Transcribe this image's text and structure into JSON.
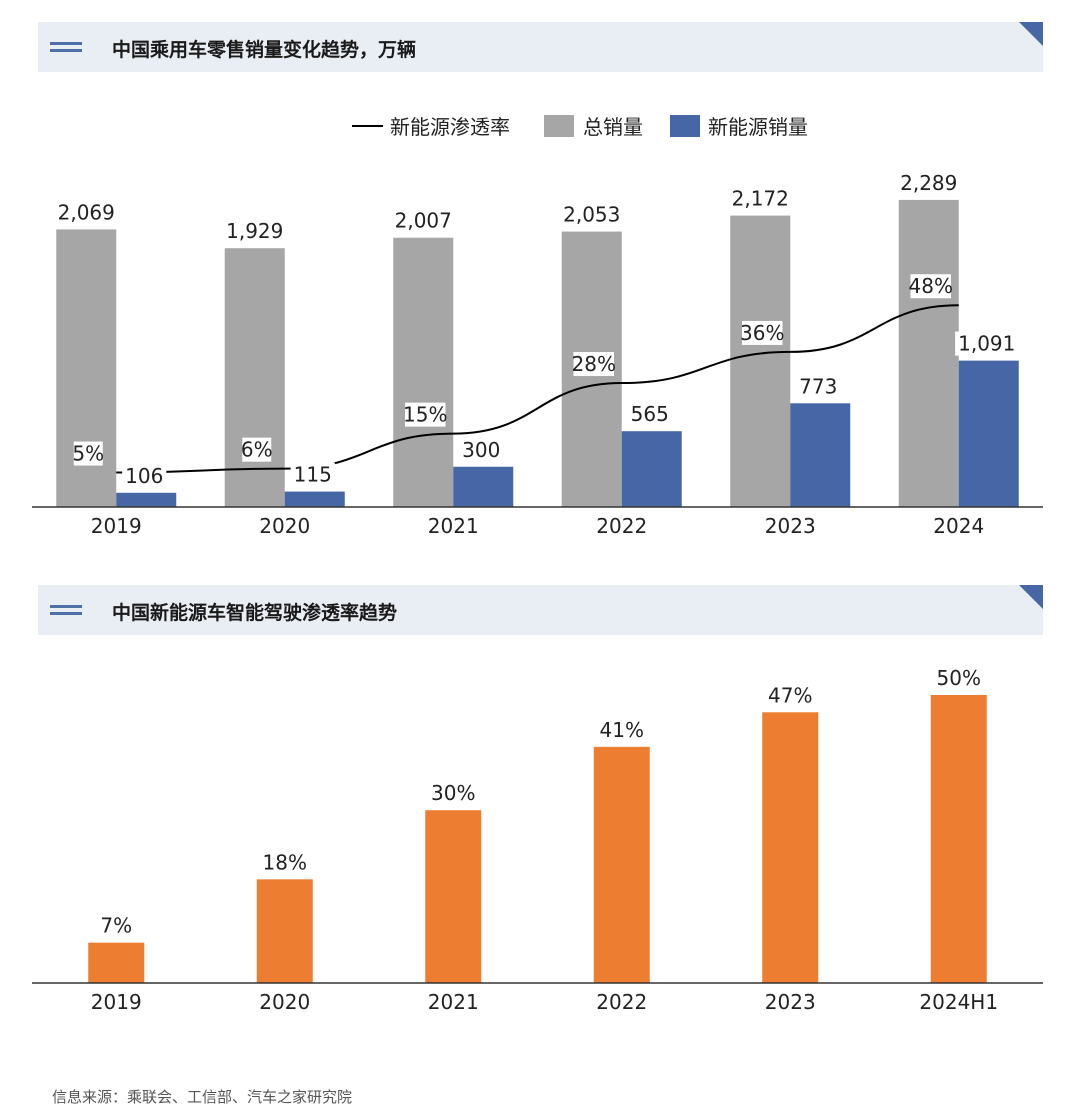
{
  "chart1": {
    "title": "中国乘用车零售销量变化趋势，万辆",
    "legend": {
      "line": "新能源渗透率",
      "total": "总销量",
      "nev": "新能源销量"
    },
    "colors": {
      "total": "#a6a6a6",
      "nev": "#4766a6",
      "line": "#000000"
    }
  },
  "chart2": {
    "title": "中国新能源车智能驾驶渗透率趋势",
    "colors": {
      "bar": "#ed7d31"
    }
  },
  "source": "信息来源：乘联会、工信部、汽车之家研究院",
  "chart_data": [
    {
      "type": "bar",
      "title": "中国乘用车零售销量变化趋势，万辆",
      "categories": [
        "2019",
        "2020",
        "2021",
        "2022",
        "2023",
        "2024"
      ],
      "series": [
        {
          "name": "总销量",
          "type": "bar",
          "values": [
            2069,
            1929,
            2007,
            2053,
            2172,
            2289
          ],
          "labels": [
            "2,069",
            "1,929",
            "2,007",
            "2,053",
            "2,172",
            "2,289"
          ]
        },
        {
          "name": "新能源销量",
          "type": "bar",
          "values": [
            106,
            115,
            300,
            565,
            773,
            1091
          ],
          "labels": [
            "106",
            "115",
            "300",
            "565",
            "773",
            "1,091"
          ]
        },
        {
          "name": "新能源渗透率",
          "type": "line",
          "values": [
            5,
            6,
            15,
            28,
            36,
            48
          ],
          "labels": [
            "5%",
            "6%",
            "15%",
            "28%",
            "36%",
            "48%"
          ]
        }
      ],
      "ylim": [
        0,
        2400
      ],
      "line_ylim": [
        0,
        100
      ],
      "legend_position": "top-center",
      "grid": false
    },
    {
      "type": "bar",
      "title": "中国新能源车智能驾驶渗透率趋势",
      "categories": [
        "2019",
        "2020",
        "2021",
        "2022",
        "2023",
        "2024H1"
      ],
      "series": [
        {
          "values": [
            7,
            18,
            30,
            41,
            47,
            50
          ],
          "labels": [
            "7%",
            "18%",
            "30%",
            "41%",
            "47%",
            "50%"
          ]
        }
      ],
      "ylim": [
        0,
        60
      ],
      "grid": false
    }
  ]
}
